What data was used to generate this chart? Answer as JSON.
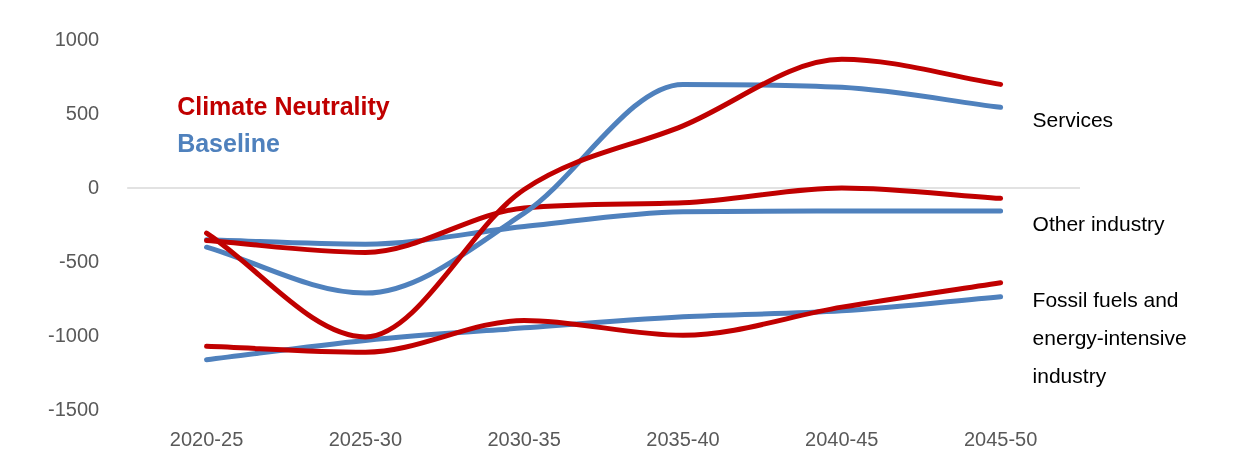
{
  "chart_data": {
    "type": "line",
    "categories": [
      "2020-25",
      "2025-30",
      "2030-35",
      "2035-40",
      "2040-45",
      "2045-50"
    ],
    "series": [
      {
        "name": "Climate Neutrality",
        "color": "#c00000",
        "values": [
          -305,
          -1006,
          -10,
          420,
          870,
          700
        ]
      },
      {
        "name": "Baseline",
        "color": "#4f81bd",
        "values": [
          -400,
          -710,
          -170,
          700,
          680,
          545
        ]
      },
      {
        "color": "#c00000",
        "values": [
          -355,
          -435,
          -135,
          -100,
          0,
          -70
        ]
      },
      {
        "color": "#4f81bd",
        "values": [
          -350,
          -380,
          -260,
          -160,
          -155,
          -155
        ]
      },
      {
        "color": "#c00000",
        "values": [
          -1070,
          -1110,
          -895,
          -995,
          -805,
          -640
        ]
      },
      {
        "color": "#4f81bd",
        "values": [
          -1160,
          -1030,
          -945,
          -870,
          -830,
          -735
        ]
      }
    ],
    "ylim": [
      -1500,
      1000
    ],
    "yticks": [
      -1500,
      -1000,
      -500,
      0,
      500,
      1000
    ],
    "grid": false,
    "legend": "top left",
    "marker": "none",
    "line_style": "solid",
    "ref_lines": [
      {
        "axis": "y",
        "value": 0,
        "color": "#d9d9d9"
      }
    ],
    "annotations": [
      {
        "text": "Services",
        "x": "2045-50",
        "y": 545
      },
      {
        "text": "Other industry",
        "x": "2045-50",
        "y": -155
      },
      {
        "text": "Fossil fuels and energy-intensive industry",
        "x": "2045-50",
        "y": -735
      }
    ]
  }
}
